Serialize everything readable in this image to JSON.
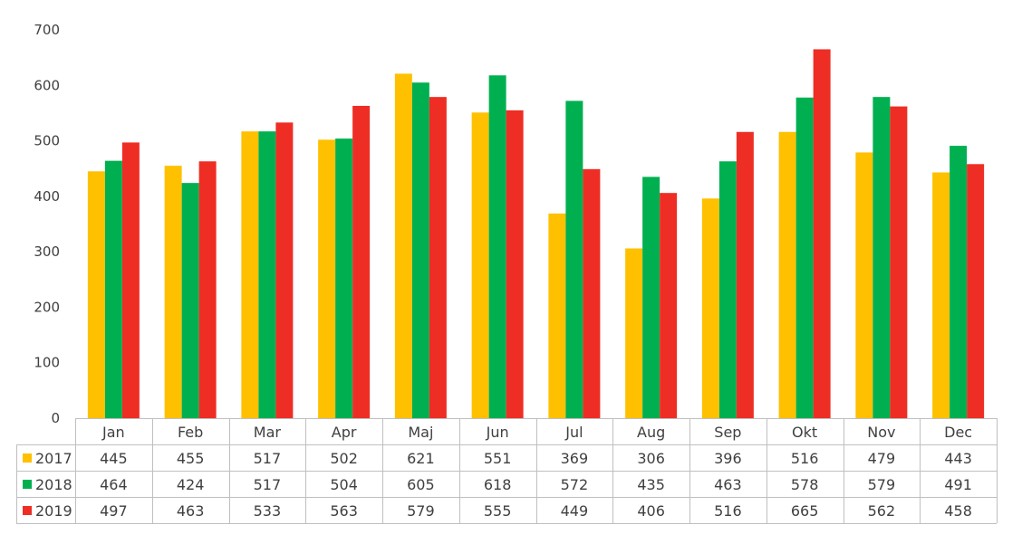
{
  "chart_data": {
    "type": "bar",
    "categories": [
      "Jan",
      "Feb",
      "Mar",
      "Apr",
      "Maj",
      "Jun",
      "Jul",
      "Aug",
      "Sep",
      "Okt",
      "Nov",
      "Dec"
    ],
    "series": [
      {
        "name": "2017",
        "color": "#FFC000",
        "values": [
          445,
          455,
          517,
          502,
          621,
          551,
          369,
          306,
          396,
          516,
          479,
          443
        ]
      },
      {
        "name": "2018",
        "color": "#00B050",
        "values": [
          464,
          424,
          517,
          504,
          605,
          618,
          572,
          435,
          463,
          578,
          579,
          491
        ]
      },
      {
        "name": "2019",
        "color": "#EE2E24",
        "values": [
          497,
          463,
          533,
          563,
          579,
          555,
          449,
          406,
          516,
          665,
          562,
          458
        ]
      }
    ],
    "ylim": [
      0,
      700
    ],
    "yticks": [
      0,
      100,
      200,
      300,
      400,
      500,
      600,
      700
    ],
    "grid": false,
    "legend": "data-table",
    "data_table": true
  }
}
